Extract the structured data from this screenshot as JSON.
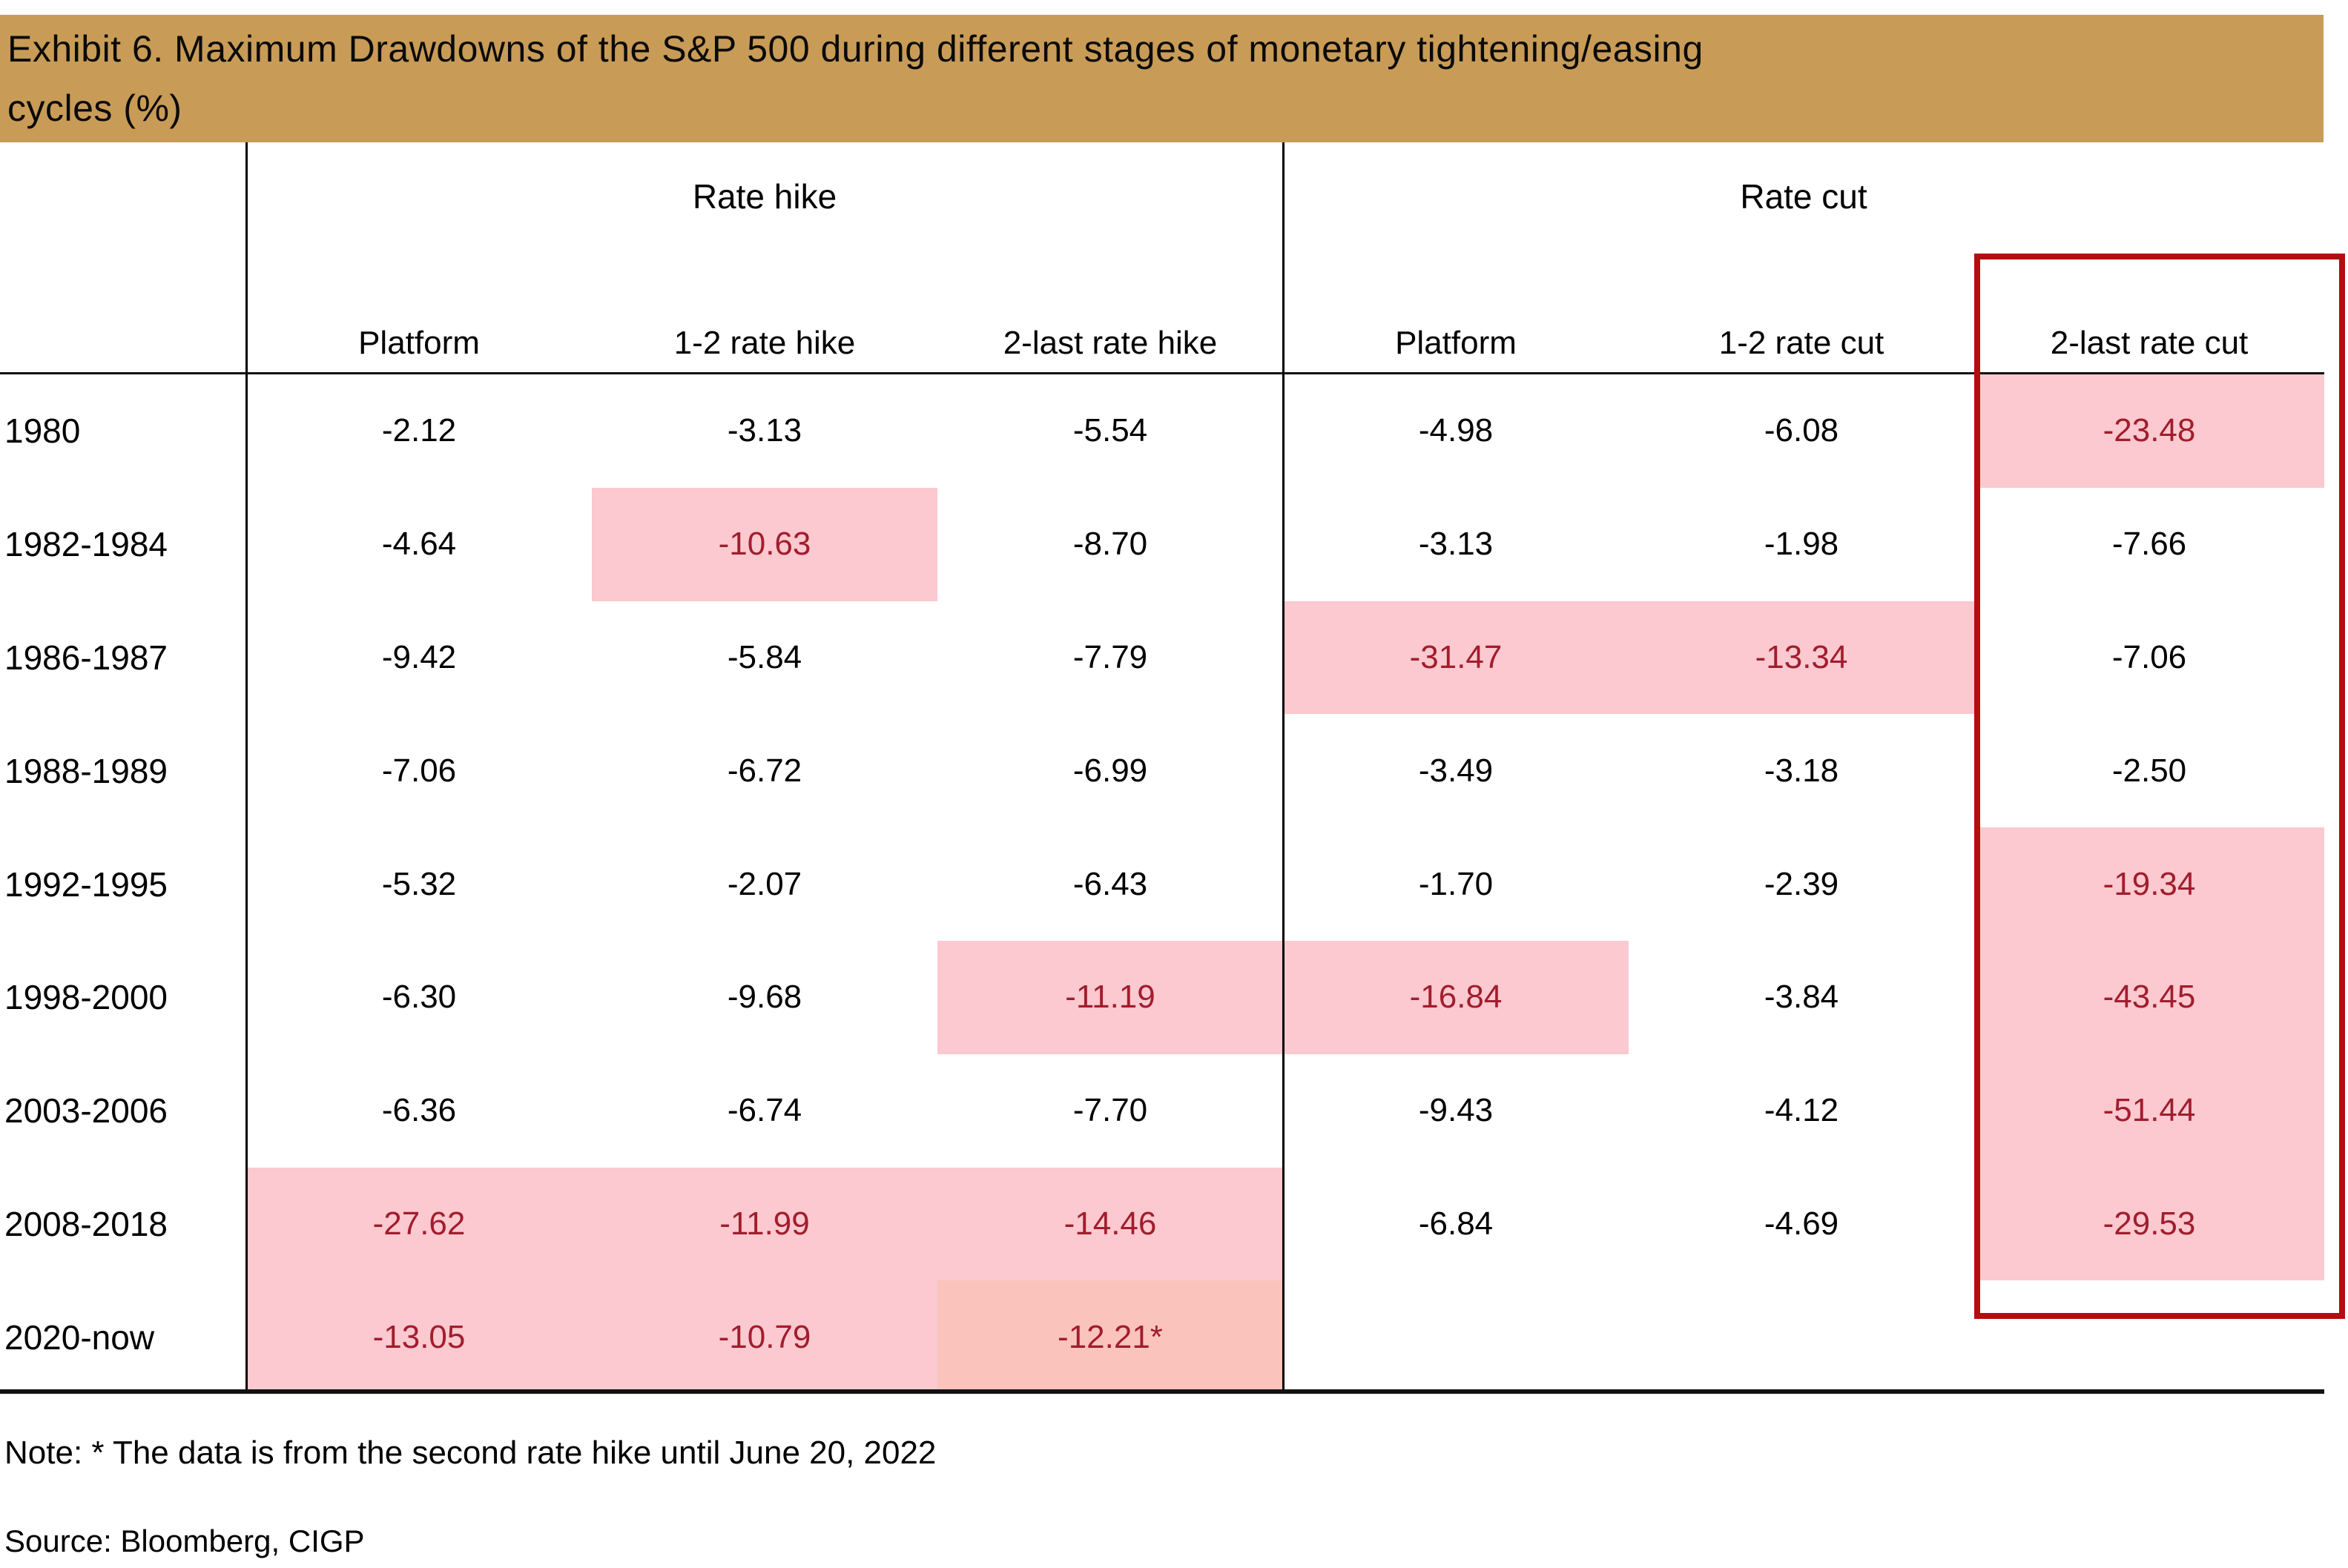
{
  "title": {
    "line1": "Exhibit 6. Maximum Drawdowns of the S&P 500 during different stages of monetary tightening/easing",
    "line2": "cycles (%)"
  },
  "table": {
    "group_headers": [
      "Rate hike",
      "Rate cut"
    ],
    "sub_headers": [
      "Platform",
      "1-2 rate hike",
      "2-last rate hike",
      "Platform",
      "1-2 rate cut",
      "2-last rate cut"
    ],
    "rows": [
      {
        "year": "1980",
        "values": [
          "-2.12",
          "-3.13",
          "-5.54",
          "-4.98",
          "-6.08",
          "-23.48"
        ],
        "highlight": [
          0,
          0,
          0,
          0,
          0,
          1
        ]
      },
      {
        "year": "1982-1984",
        "values": [
          "-4.64",
          "-10.63",
          "-8.70",
          "-3.13",
          "-1.98",
          "-7.66"
        ],
        "highlight": [
          0,
          1,
          0,
          0,
          0,
          0
        ]
      },
      {
        "year": "1986-1987",
        "values": [
          "-9.42",
          "-5.84",
          "-7.79",
          "-31.47",
          "-13.34",
          "-7.06"
        ],
        "highlight": [
          0,
          0,
          0,
          1,
          1,
          0
        ]
      },
      {
        "year": "1988-1989",
        "values": [
          "-7.06",
          "-6.72",
          "-6.99",
          "-3.49",
          "-3.18",
          "-2.50"
        ],
        "highlight": [
          0,
          0,
          0,
          0,
          0,
          0
        ]
      },
      {
        "year": "1992-1995",
        "values": [
          "-5.32",
          "-2.07",
          "-6.43",
          "-1.70",
          "-2.39",
          "-19.34"
        ],
        "highlight": [
          0,
          0,
          0,
          0,
          0,
          1
        ]
      },
      {
        "year": "1998-2000",
        "values": [
          "-6.30",
          "-9.68",
          "-11.19",
          "-16.84",
          "-3.84",
          "-43.45"
        ],
        "highlight": [
          0,
          0,
          1,
          1,
          0,
          1
        ]
      },
      {
        "year": "2003-2006",
        "values": [
          "-6.36",
          "-6.74",
          "-7.70",
          "-9.43",
          "-4.12",
          "-51.44"
        ],
        "highlight": [
          0,
          0,
          0,
          0,
          0,
          1
        ]
      },
      {
        "year": "2008-2018",
        "values": [
          "-27.62",
          "-11.99",
          "-14.46",
          "-6.84",
          "-4.69",
          "-29.53"
        ],
        "highlight": [
          1,
          1,
          1,
          0,
          0,
          1
        ]
      },
      {
        "year": "2020-now",
        "values": [
          "-13.05",
          "-10.79",
          "-12.21*",
          "",
          "",
          ""
        ],
        "highlight": [
          1,
          1,
          2,
          0,
          0,
          0
        ]
      }
    ]
  },
  "note": "Note: * The data is from the second rate hike until June 20, 2022",
  "source": "Source: Bloomberg, CIGP",
  "colors": {
    "title_bar": "#C89B57",
    "highlight": "#FBC9CF",
    "highlight_alt": "#FAC4BC",
    "highlight_text": "#A11D2D",
    "red_box": "#B50D0F"
  }
}
